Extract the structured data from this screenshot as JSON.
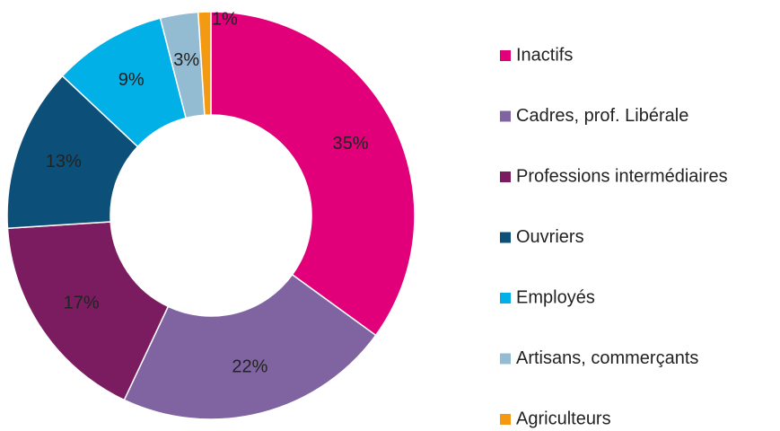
{
  "chart_data": {
    "type": "donut",
    "categories": [
      "Inactifs",
      "Cadres, prof. Libérale",
      "Professions intermédiaires",
      "Ouvriers",
      "Employés",
      "Artisans, commerçants",
      "Agriculteurs"
    ],
    "values": [
      35,
      22,
      17,
      13,
      9,
      3,
      1
    ],
    "value_labels": [
      "35%",
      "22%",
      "17%",
      "13%",
      "9%",
      "3%",
      "1%"
    ],
    "colors": [
      "#e2007a",
      "#8064a2",
      "#7b1c60",
      "#0c5079",
      "#00b0e6",
      "#93bcd3",
      "#f39a12"
    ],
    "legend": "right"
  }
}
